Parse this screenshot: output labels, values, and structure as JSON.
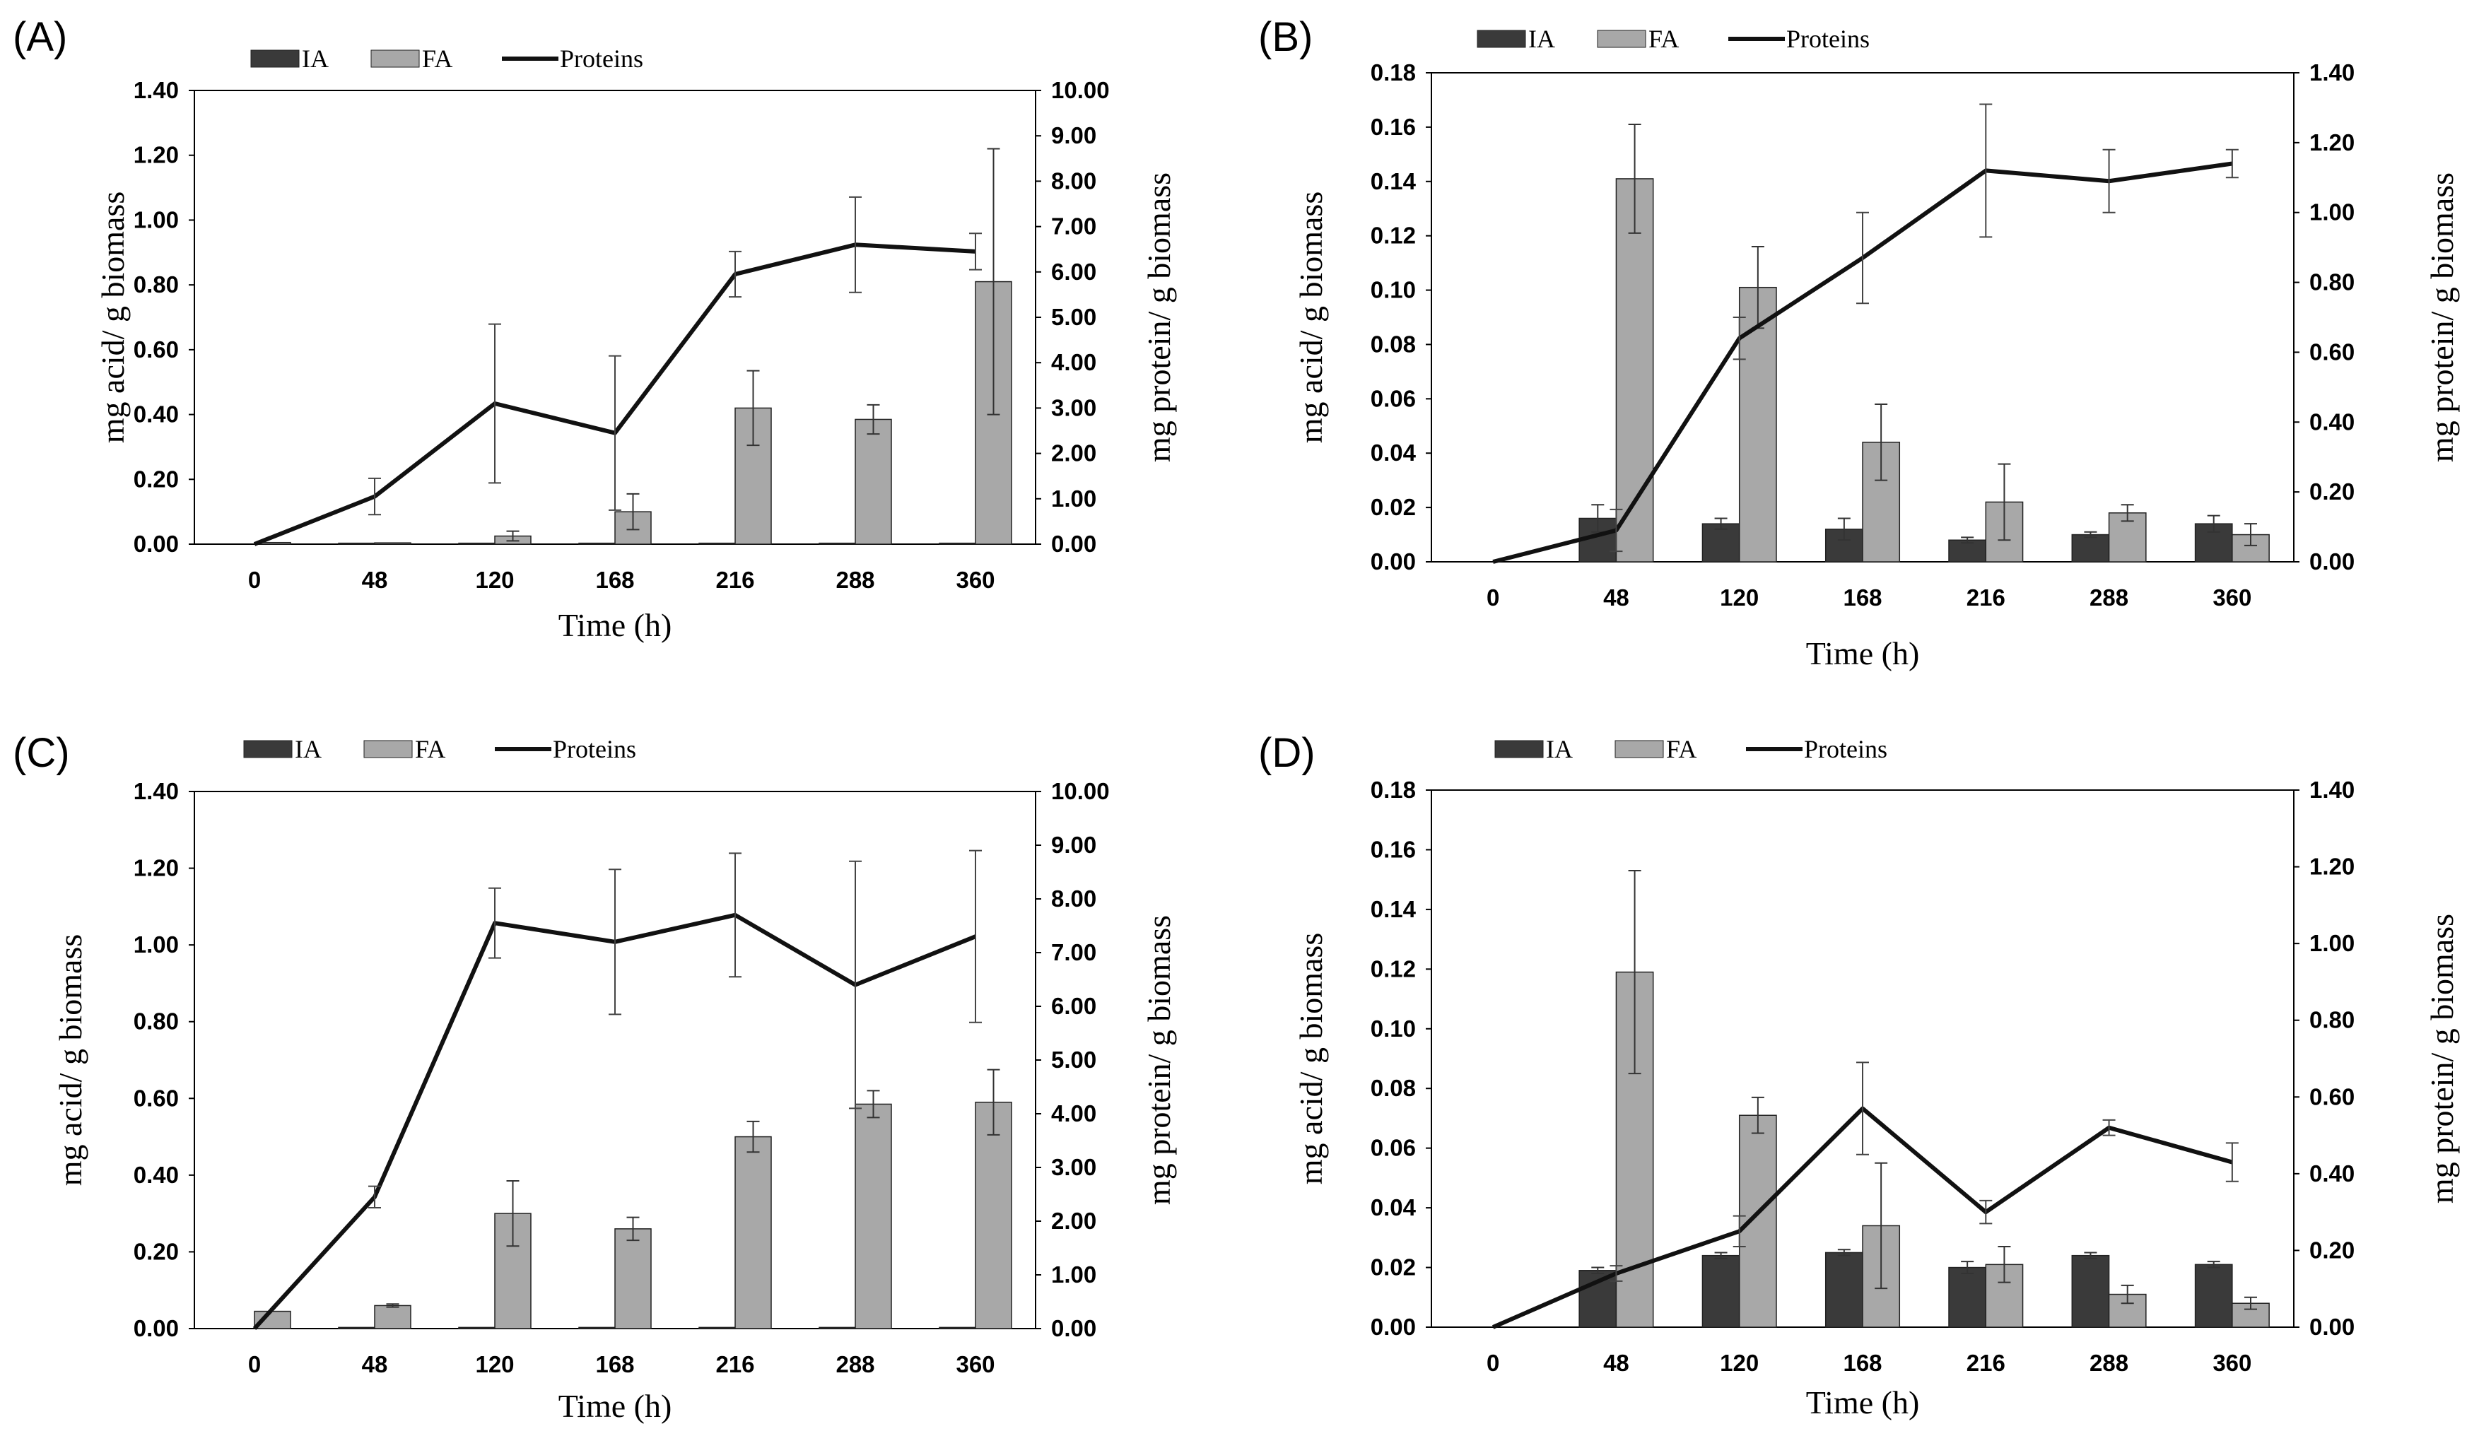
{
  "chart_data": [
    {
      "panel": "(A)",
      "type": "bar+line",
      "categories": [
        "0",
        "48",
        "120",
        "168",
        "216",
        "288",
        "360"
      ],
      "xlabel": "Time (h)",
      "ylabel_left": "mg acid/ g biomass",
      "ylabel_right": "mg protein/ g biomass",
      "ylim_left": [
        0,
        1.4
      ],
      "yticks_left": [
        "0.00",
        "0.20",
        "0.40",
        "0.60",
        "0.80",
        "1.00",
        "1.20",
        "1.40"
      ],
      "ylim_right": [
        0,
        10
      ],
      "yticks_right": [
        "0.00",
        "1.00",
        "2.00",
        "3.00",
        "4.00",
        "5.00",
        "6.00",
        "7.00",
        "8.00",
        "9.00",
        "10.00"
      ],
      "legend": [
        "IA",
        "FA",
        "Proteins"
      ],
      "series": [
        {
          "name": "IA",
          "kind": "bar",
          "color": "#3a3a3a",
          "axis": "left",
          "values": [
            0,
            0.003,
            0.003,
            0.003,
            0.003,
            0.003,
            0.003
          ],
          "errors": [
            0,
            0,
            0,
            0,
            0,
            0,
            0
          ]
        },
        {
          "name": "FA",
          "kind": "bar",
          "color": "#a8a8a8",
          "axis": "left",
          "values": [
            0.005,
            0.004,
            0.025,
            0.1,
            0.42,
            0.385,
            0.81
          ],
          "errors": [
            0,
            0,
            0.015,
            0.055,
            0.115,
            0.045,
            0.41
          ]
        },
        {
          "name": "Proteins",
          "kind": "line",
          "color": "#111111",
          "axis": "right",
          "values": [
            0,
            1.05,
            3.1,
            2.45,
            5.95,
            6.6,
            6.45
          ],
          "errors": [
            0,
            0.4,
            1.75,
            1.7,
            0.5,
            1.05,
            0.4
          ]
        }
      ]
    },
    {
      "panel": "(B)",
      "type": "bar+line",
      "categories": [
        "0",
        "48",
        "120",
        "168",
        "216",
        "288",
        "360"
      ],
      "xlabel": "Time (h)",
      "ylabel_left": "mg acid/ g biomass",
      "ylabel_right": "mg protein/ g biomass",
      "ylim_left": [
        0,
        0.18
      ],
      "yticks_left": [
        "0.00",
        "0.02",
        "0.04",
        "0.06",
        "0.08",
        "0.10",
        "0.12",
        "0.14",
        "0.16",
        "0.18"
      ],
      "ylim_right": [
        0,
        1.4
      ],
      "yticks_right": [
        "0.00",
        "0.20",
        "0.40",
        "0.60",
        "0.80",
        "1.00",
        "1.20",
        "1.40"
      ],
      "legend": [
        "IA",
        "FA",
        "Proteins"
      ],
      "series": [
        {
          "name": "IA",
          "kind": "bar",
          "color": "#3a3a3a",
          "axis": "left",
          "values": [
            0,
            0.016,
            0.014,
            0.012,
            0.008,
            0.01,
            0.014
          ],
          "errors": [
            0,
            0.005,
            0.002,
            0.004,
            0.001,
            0.001,
            0.003
          ]
        },
        {
          "name": "FA",
          "kind": "bar",
          "color": "#a8a8a8",
          "axis": "left",
          "values": [
            0,
            0.141,
            0.101,
            0.044,
            0.022,
            0.018,
            0.01
          ],
          "errors": [
            0,
            0.02,
            0.015,
            0.014,
            0.014,
            0.003,
            0.004
          ]
        },
        {
          "name": "Proteins",
          "kind": "line",
          "color": "#111111",
          "axis": "right",
          "values": [
            0,
            0.09,
            0.64,
            0.87,
            1.12,
            1.09,
            1.14
          ],
          "errors": [
            0,
            0.06,
            0.06,
            0.13,
            0.19,
            0.09,
            0.04
          ]
        }
      ]
    },
    {
      "panel": "(C)",
      "type": "bar+line",
      "categories": [
        "0",
        "48",
        "120",
        "168",
        "216",
        "288",
        "360"
      ],
      "xlabel": "Time (h)",
      "ylabel_left": "mg acid/ g biomass",
      "ylabel_right": "mg protein/ g biomass",
      "ylim_left": [
        0,
        1.4
      ],
      "yticks_left": [
        "0.00",
        "0.20",
        "0.40",
        "0.60",
        "0.80",
        "1.00",
        "1.20",
        "1.40"
      ],
      "ylim_right": [
        0,
        10
      ],
      "yticks_right": [
        "0.00",
        "1.00",
        "2.00",
        "3.00",
        "4.00",
        "5.00",
        "6.00",
        "7.00",
        "8.00",
        "9.00",
        "10.00"
      ],
      "legend": [
        "IA",
        "FA",
        "Proteins"
      ],
      "series": [
        {
          "name": "IA",
          "kind": "bar",
          "color": "#3a3a3a",
          "axis": "left",
          "values": [
            0,
            0.003,
            0.003,
            0.003,
            0.003,
            0.003,
            0.003
          ],
          "errors": [
            0,
            0,
            0,
            0,
            0,
            0,
            0
          ]
        },
        {
          "name": "FA",
          "kind": "bar",
          "color": "#a8a8a8",
          "axis": "left",
          "values": [
            0.045,
            0.06,
            0.3,
            0.26,
            0.5,
            0.585,
            0.59
          ],
          "errors": [
            0,
            0.004,
            0.085,
            0.03,
            0.04,
            0.035,
            0.085
          ]
        },
        {
          "name": "Proteins",
          "kind": "line",
          "color": "#111111",
          "axis": "right",
          "values": [
            0,
            2.45,
            7.55,
            7.2,
            7.7,
            6.4,
            7.3
          ],
          "errors": [
            0,
            0.2,
            0.65,
            1.35,
            1.15,
            2.3,
            1.6
          ]
        }
      ]
    },
    {
      "panel": "(D)",
      "type": "bar+line",
      "categories": [
        "0",
        "48",
        "120",
        "168",
        "216",
        "288",
        "360"
      ],
      "xlabel": "Time (h)",
      "ylabel_left": "mg acid/ g biomass",
      "ylabel_right": "mg protein/ g biomass",
      "ylim_left": [
        0,
        0.18
      ],
      "yticks_left": [
        "0.00",
        "0.02",
        "0.04",
        "0.06",
        "0.08",
        "0.10",
        "0.12",
        "0.14",
        "0.16",
        "0.18"
      ],
      "ylim_right": [
        0,
        1.4
      ],
      "yticks_right": [
        "0.00",
        "0.20",
        "0.40",
        "0.60",
        "0.80",
        "1.00",
        "1.20",
        "1.40"
      ],
      "legend": [
        "IA",
        "FA",
        "Proteins"
      ],
      "series": [
        {
          "name": "IA",
          "kind": "bar",
          "color": "#3a3a3a",
          "axis": "left",
          "values": [
            0,
            0.019,
            0.024,
            0.025,
            0.02,
            0.024,
            0.021
          ],
          "errors": [
            0,
            0.001,
            0.001,
            0.001,
            0.002,
            0.001,
            0.001
          ]
        },
        {
          "name": "FA",
          "kind": "bar",
          "color": "#a8a8a8",
          "axis": "left",
          "values": [
            0,
            0.119,
            0.071,
            0.034,
            0.021,
            0.011,
            0.008
          ],
          "errors": [
            0,
            0.034,
            0.006,
            0.021,
            0.006,
            0.003,
            0.002
          ]
        },
        {
          "name": "Proteins",
          "kind": "line",
          "color": "#111111",
          "axis": "right",
          "values": [
            0,
            0.14,
            0.25,
            0.57,
            0.3,
            0.52,
            0.43
          ],
          "errors": [
            0,
            0.02,
            0.04,
            0.12,
            0.03,
            0.02,
            0.05
          ]
        }
      ]
    }
  ]
}
